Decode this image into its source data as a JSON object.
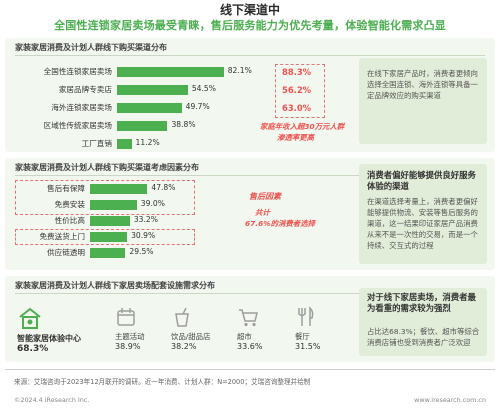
{
  "header": {
    "title": "线下渠道中",
    "subtitle": "全国性连锁家居卖场最受青睐，售后服务能力为优先考量，体验智能化需求凸显"
  },
  "channel_section": {
    "title": "家装家居消费及计划人群线下购买渠道分布",
    "highlight_values": [
      "88.3%",
      "56.2%",
      "63.0%"
    ],
    "note_line1": "家庭年收入超30万元人群",
    "note_line2": "渗透率更高",
    "side_text": "在线下家居产品时，消费者更倾向选择全国连锁、海外连锁等具备一定品牌效应的购买渠道"
  },
  "factor_section": {
    "title": "家装家居消费及计划人群线下购买渠道考虑因素分布",
    "note_line1": "售后因素",
    "note_line2": "共计",
    "note_line3": "67.6%的消费者选择",
    "side_title": "消费者偏好能够提供良好服务体验的渠道",
    "side_text": "在渠道选择考量上，消费者更偏好能够提供物流、安装等售后服务的渠道，这一结果印证家居产品消费从来不是一次性的交易，而是一个持续、交互式的过程"
  },
  "facility_section": {
    "title": "家装家居消费及计划人群线下家居卖场配套设施需求分布",
    "items": [
      {
        "icon": "smart-home-icon",
        "label": "智能家居体验中心",
        "value": "68.3%"
      },
      {
        "icon": "activity-icon",
        "label": "主题活动",
        "value": "38.9%"
      },
      {
        "icon": "food-icon",
        "label": "饮品/甜品店",
        "value": "38.2%"
      },
      {
        "icon": "supermarket-icon",
        "label": "超市",
        "value": "33.6%"
      },
      {
        "icon": "restaurant-icon",
        "label": "餐厅",
        "value": "31.5%"
      }
    ],
    "side_title": "对于线下家居卖场，消费者最为看重的需求较为强烈",
    "side_text": "占比达68.3%；餐饮、超市等综合消费店铺也受到消费者广泛欢迎"
  },
  "chart_data": [
    {
      "type": "bar",
      "title": "家装家居消费及计划人群线下购买渠道分布",
      "categories": [
        "全国性连锁家居卖场",
        "家居品牌专卖店",
        "海外连锁家居卖场",
        "区域性传统家居卖场",
        "工厂直销"
      ],
      "values": [
        82.1,
        54.5,
        49.7,
        38.8,
        11.2
      ],
      "unit": "%",
      "xlim": [
        0,
        100
      ],
      "grid": false
    },
    {
      "type": "bar",
      "title": "家装家居消费及计划人群线下购买渠道考虑因素分布",
      "categories": [
        "售后有保障",
        "免费安装",
        "性价比高",
        "免费送货上门",
        "供应链透明"
      ],
      "values": [
        47.8,
        39.0,
        33.2,
        30.9,
        29.5
      ],
      "unit": "%",
      "xlim": [
        0,
        100
      ],
      "grid": false
    }
  ],
  "footer": {
    "source": "来源：艾瑞咨询于2023年12月联开的调研。近一年消费、计划人群：N=2000；艾瑞咨询整理并绘制",
    "copyright": "©2024.4 iResearch Inc.",
    "website": "www.iresearch.com.cn"
  },
  "colors": {
    "bar": "#4caf50",
    "panel_bg": "#f2f7ef",
    "side_bg": "#e1edd8",
    "highlight": "#ef5350",
    "accent_text": "#4caf50"
  }
}
